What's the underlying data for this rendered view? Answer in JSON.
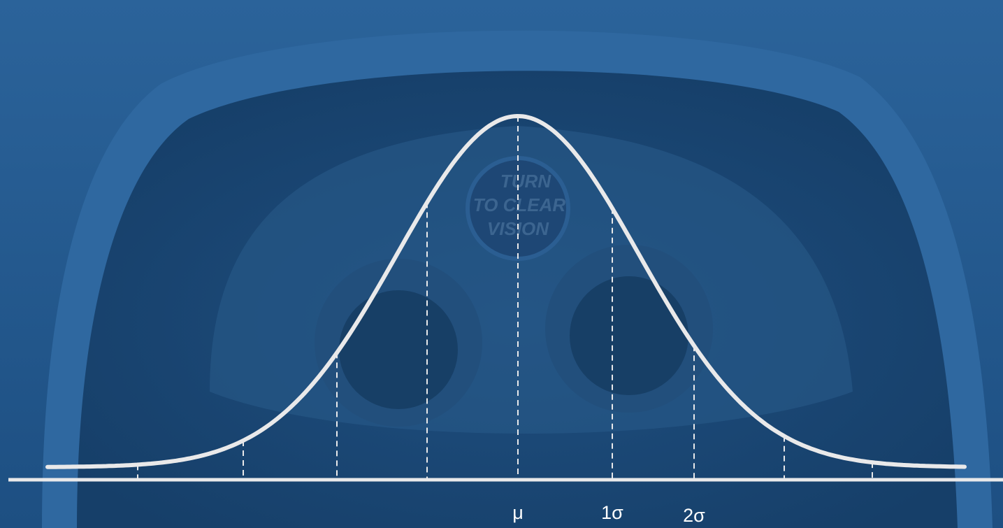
{
  "photo_text": [
    "TURN",
    "TO CLEAR",
    "VISION"
  ],
  "axis_labels": [
    "μ",
    "1σ",
    "2σ"
  ]
}
